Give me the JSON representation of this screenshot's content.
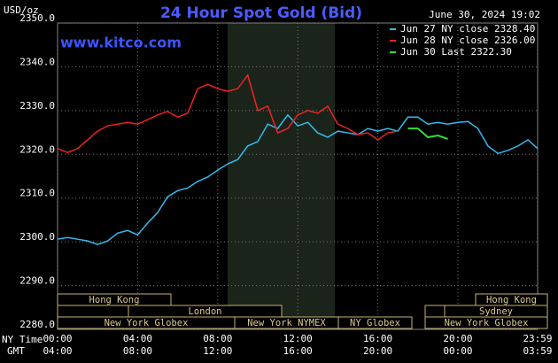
{
  "chart_data": {
    "type": "line",
    "title": "24 Hour Spot Gold (Bid)",
    "timestamp": "June 30, 2024 19:02",
    "site": "www.kitco.com",
    "y_unit": "USD/oz",
    "x_label": "NY Time",
    "x2_label": "GMT",
    "x": [
      0,
      0.5,
      1,
      1.5,
      2,
      2.5,
      3,
      3.5,
      4,
      4.5,
      5,
      5.5,
      6,
      6.5,
      7,
      7.5,
      8,
      8.5,
      9,
      9.5,
      10,
      10.5,
      11,
      11.5,
      12,
      12.5,
      13,
      13.5,
      14,
      14.5,
      15,
      15.5,
      16,
      16.5,
      17,
      17.5,
      18,
      18.5,
      19,
      19.5,
      20,
      20.5,
      21,
      21.5,
      22,
      22.5,
      23,
      23.5,
      23.98
    ],
    "series": [
      {
        "name": "Jun 27 NY close 2328.40",
        "color": "#33bbee",
        "values": [
          2300.6,
          2301.0,
          2300.6,
          2300.2,
          2299.4,
          2300.2,
          2302.0,
          2302.6,
          2301.6,
          2304.3,
          2306.7,
          2310.3,
          2311.7,
          2312.3,
          2313.8,
          2314.8,
          2316.4,
          2317.8,
          2318.8,
          2321.9,
          2322.9,
          2326.9,
          2325.9,
          2329.0,
          2326.5,
          2327.3,
          2324.9,
          2323.9,
          2325.3,
          2324.9,
          2324.5,
          2325.9,
          2325.3,
          2325.9,
          2325.3,
          2328.5,
          2328.5,
          2326.9,
          2327.3,
          2326.9,
          2327.3,
          2327.5,
          2325.9,
          2321.9,
          2320.2,
          2320.9,
          2321.9,
          2323.3,
          2321.3
        ]
      },
      {
        "name": "Jun 28 NY close 2326.00",
        "color": "#ee2222",
        "values": [
          2321.3,
          2320.4,
          2321.3,
          2323.3,
          2325.3,
          2326.5,
          2326.9,
          2327.3,
          2326.9,
          2327.9,
          2329.0,
          2329.8,
          2328.5,
          2329.4,
          2335.0,
          2336.0,
          2335.0,
          2334.4,
          2335.0,
          2338.1,
          2330.0,
          2331.0,
          2324.9,
          2325.9,
          2329.0,
          2330.0,
          2329.4,
          2331.0,
          2326.9,
          2325.9,
          2324.5,
          2324.9,
          2323.3,
          2324.9,
          2325.3,
          null,
          null,
          null,
          null,
          null,
          null,
          null,
          null,
          null,
          null,
          null,
          null,
          null,
          null
        ]
      },
      {
        "name": "Jun 30 Last 2322.30",
        "color": "#33dd33",
        "values": [
          null,
          null,
          null,
          null,
          null,
          null,
          null,
          null,
          null,
          null,
          null,
          null,
          null,
          null,
          null,
          null,
          null,
          null,
          null,
          null,
          null,
          null,
          null,
          null,
          null,
          null,
          null,
          null,
          null,
          null,
          null,
          null,
          null,
          null,
          null,
          2325.9,
          2325.9,
          2323.9,
          2324.3,
          2323.5,
          null,
          null,
          null,
          null,
          null,
          null,
          null,
          null,
          null
        ]
      }
    ],
    "xlim": [
      0,
      23.983
    ],
    "xticks": [
      {
        "value": 0,
        "label": "00:00"
      },
      {
        "value": 4,
        "label": "04:00"
      },
      {
        "value": 8,
        "label": "08:00"
      },
      {
        "value": 12,
        "label": "12:00"
      },
      {
        "value": 16,
        "label": "16:00"
      },
      {
        "value": 20,
        "label": "20:00"
      },
      {
        "value": 23.983,
        "label": "23:59"
      }
    ],
    "x2ticks": [
      {
        "value": 0,
        "label": "04:00"
      },
      {
        "value": 4,
        "label": "08:00"
      },
      {
        "value": 8,
        "label": "12:00"
      },
      {
        "value": 12,
        "label": "16:00"
      },
      {
        "value": 16,
        "label": "20:00"
      },
      {
        "value": 20,
        "label": "00:00"
      },
      {
        "value": 23.983,
        "label": "03:59"
      }
    ],
    "ylim": [
      2280,
      2350
    ],
    "yticks": [
      {
        "value": 2280,
        "label": "2280.0"
      },
      {
        "value": 2290,
        "label": "2290.0"
      },
      {
        "value": 2300,
        "label": "2300.0"
      },
      {
        "value": 2310,
        "label": "2310.0"
      },
      {
        "value": 2320,
        "label": "2320.0"
      },
      {
        "value": 2330,
        "label": "2330.0"
      },
      {
        "value": 2340,
        "label": "2340.0"
      },
      {
        "value": 2350,
        "label": "2350.0"
      }
    ],
    "grid": true,
    "sessions": [
      "Hong Kong",
      "London",
      "New York Globex",
      "New York NYMEX",
      "NY Globex",
      "Hong Kong",
      "Sydney",
      "New York Globex"
    ]
  }
}
